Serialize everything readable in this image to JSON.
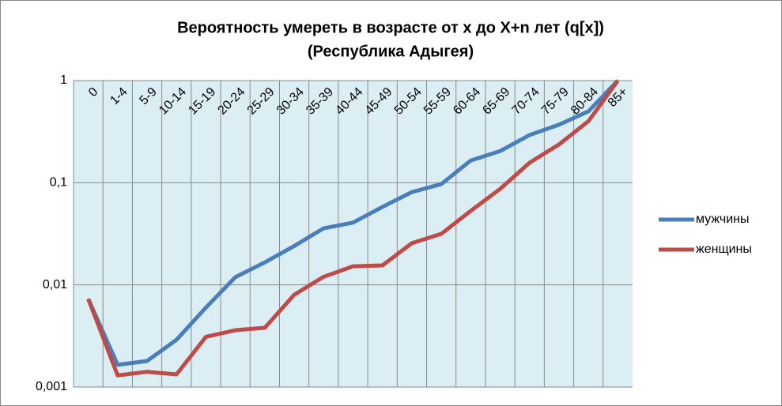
{
  "chart_data": {
    "type": "line",
    "title": [
      "Вероятность умереть в возрасте от х до Х+n лет (q[x])",
      "(Республика Адыгея)"
    ],
    "categories": [
      "0",
      "1-4",
      "5-9",
      "10-14",
      "15-19",
      "20-24",
      "25-29",
      "30-34",
      "35-39",
      "40-44",
      "45-49",
      "50-54",
      "55-59",
      "60-64",
      "65-69",
      "70-74",
      "75-79",
      "80-84",
      "85+"
    ],
    "series": [
      {
        "name": "мужчины",
        "color": "#4a7ebb",
        "values": [
          0.0073,
          0.00165,
          0.0018,
          0.0029,
          0.006,
          0.0119,
          0.0166,
          0.024,
          0.0358,
          0.0407,
          0.058,
          0.081,
          0.097,
          0.165,
          0.204,
          0.293,
          0.37,
          0.5,
          1
        ]
      },
      {
        "name": "женщины",
        "color": "#be4b48",
        "values": [
          0.0073,
          0.0013,
          0.00141,
          0.00133,
          0.0031,
          0.0036,
          0.0038,
          0.008,
          0.012,
          0.0152,
          0.0155,
          0.0256,
          0.0316,
          0.053,
          0.087,
          0.157,
          0.237,
          0.4,
          1
        ]
      }
    ],
    "ylim": [
      0.001,
      1
    ],
    "log_scale": true,
    "yticks": [
      {
        "value": 0.001,
        "label": "0,001"
      },
      {
        "value": 0.01,
        "label": "0,01"
      },
      {
        "value": 0.1,
        "label": "0,1"
      },
      1
    ],
    "grid": true,
    "legend": "right"
  }
}
